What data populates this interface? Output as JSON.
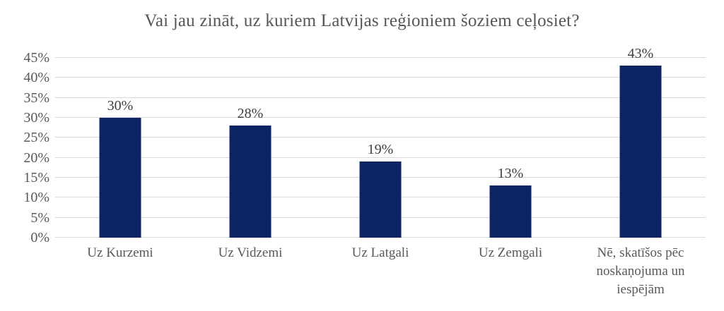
{
  "chart_data": {
    "type": "bar",
    "title": "Vai jau zināt, uz kuriem Latvijas reģioniem šoziem ceļosiet?",
    "categories": [
      "Uz Kurzemi",
      "Uz Vidzemi",
      "Uz Latgali",
      "Uz Zemgali",
      "Nē, skatīšos pēc noskaņojuma un iespējām"
    ],
    "values": [
      30,
      28,
      19,
      13,
      43
    ],
    "data_labels": [
      "30%",
      "28%",
      "19%",
      "13%",
      "43%"
    ],
    "xlabel": "",
    "ylabel": "",
    "ylim": [
      0,
      45
    ],
    "ytick_step": 5,
    "ytick_labels": [
      "0%",
      "5%",
      "10%",
      "15%",
      "20%",
      "25%",
      "30%",
      "35%",
      "40%",
      "45%"
    ],
    "grid": true,
    "legend_position": "none",
    "bar_color": "#0d2463",
    "gridline_color": "#d9d9d9",
    "title_color": "#55565a",
    "axis_label_color": "#595959",
    "value_label_color": "#404040",
    "background_color": "#ffffff"
  }
}
